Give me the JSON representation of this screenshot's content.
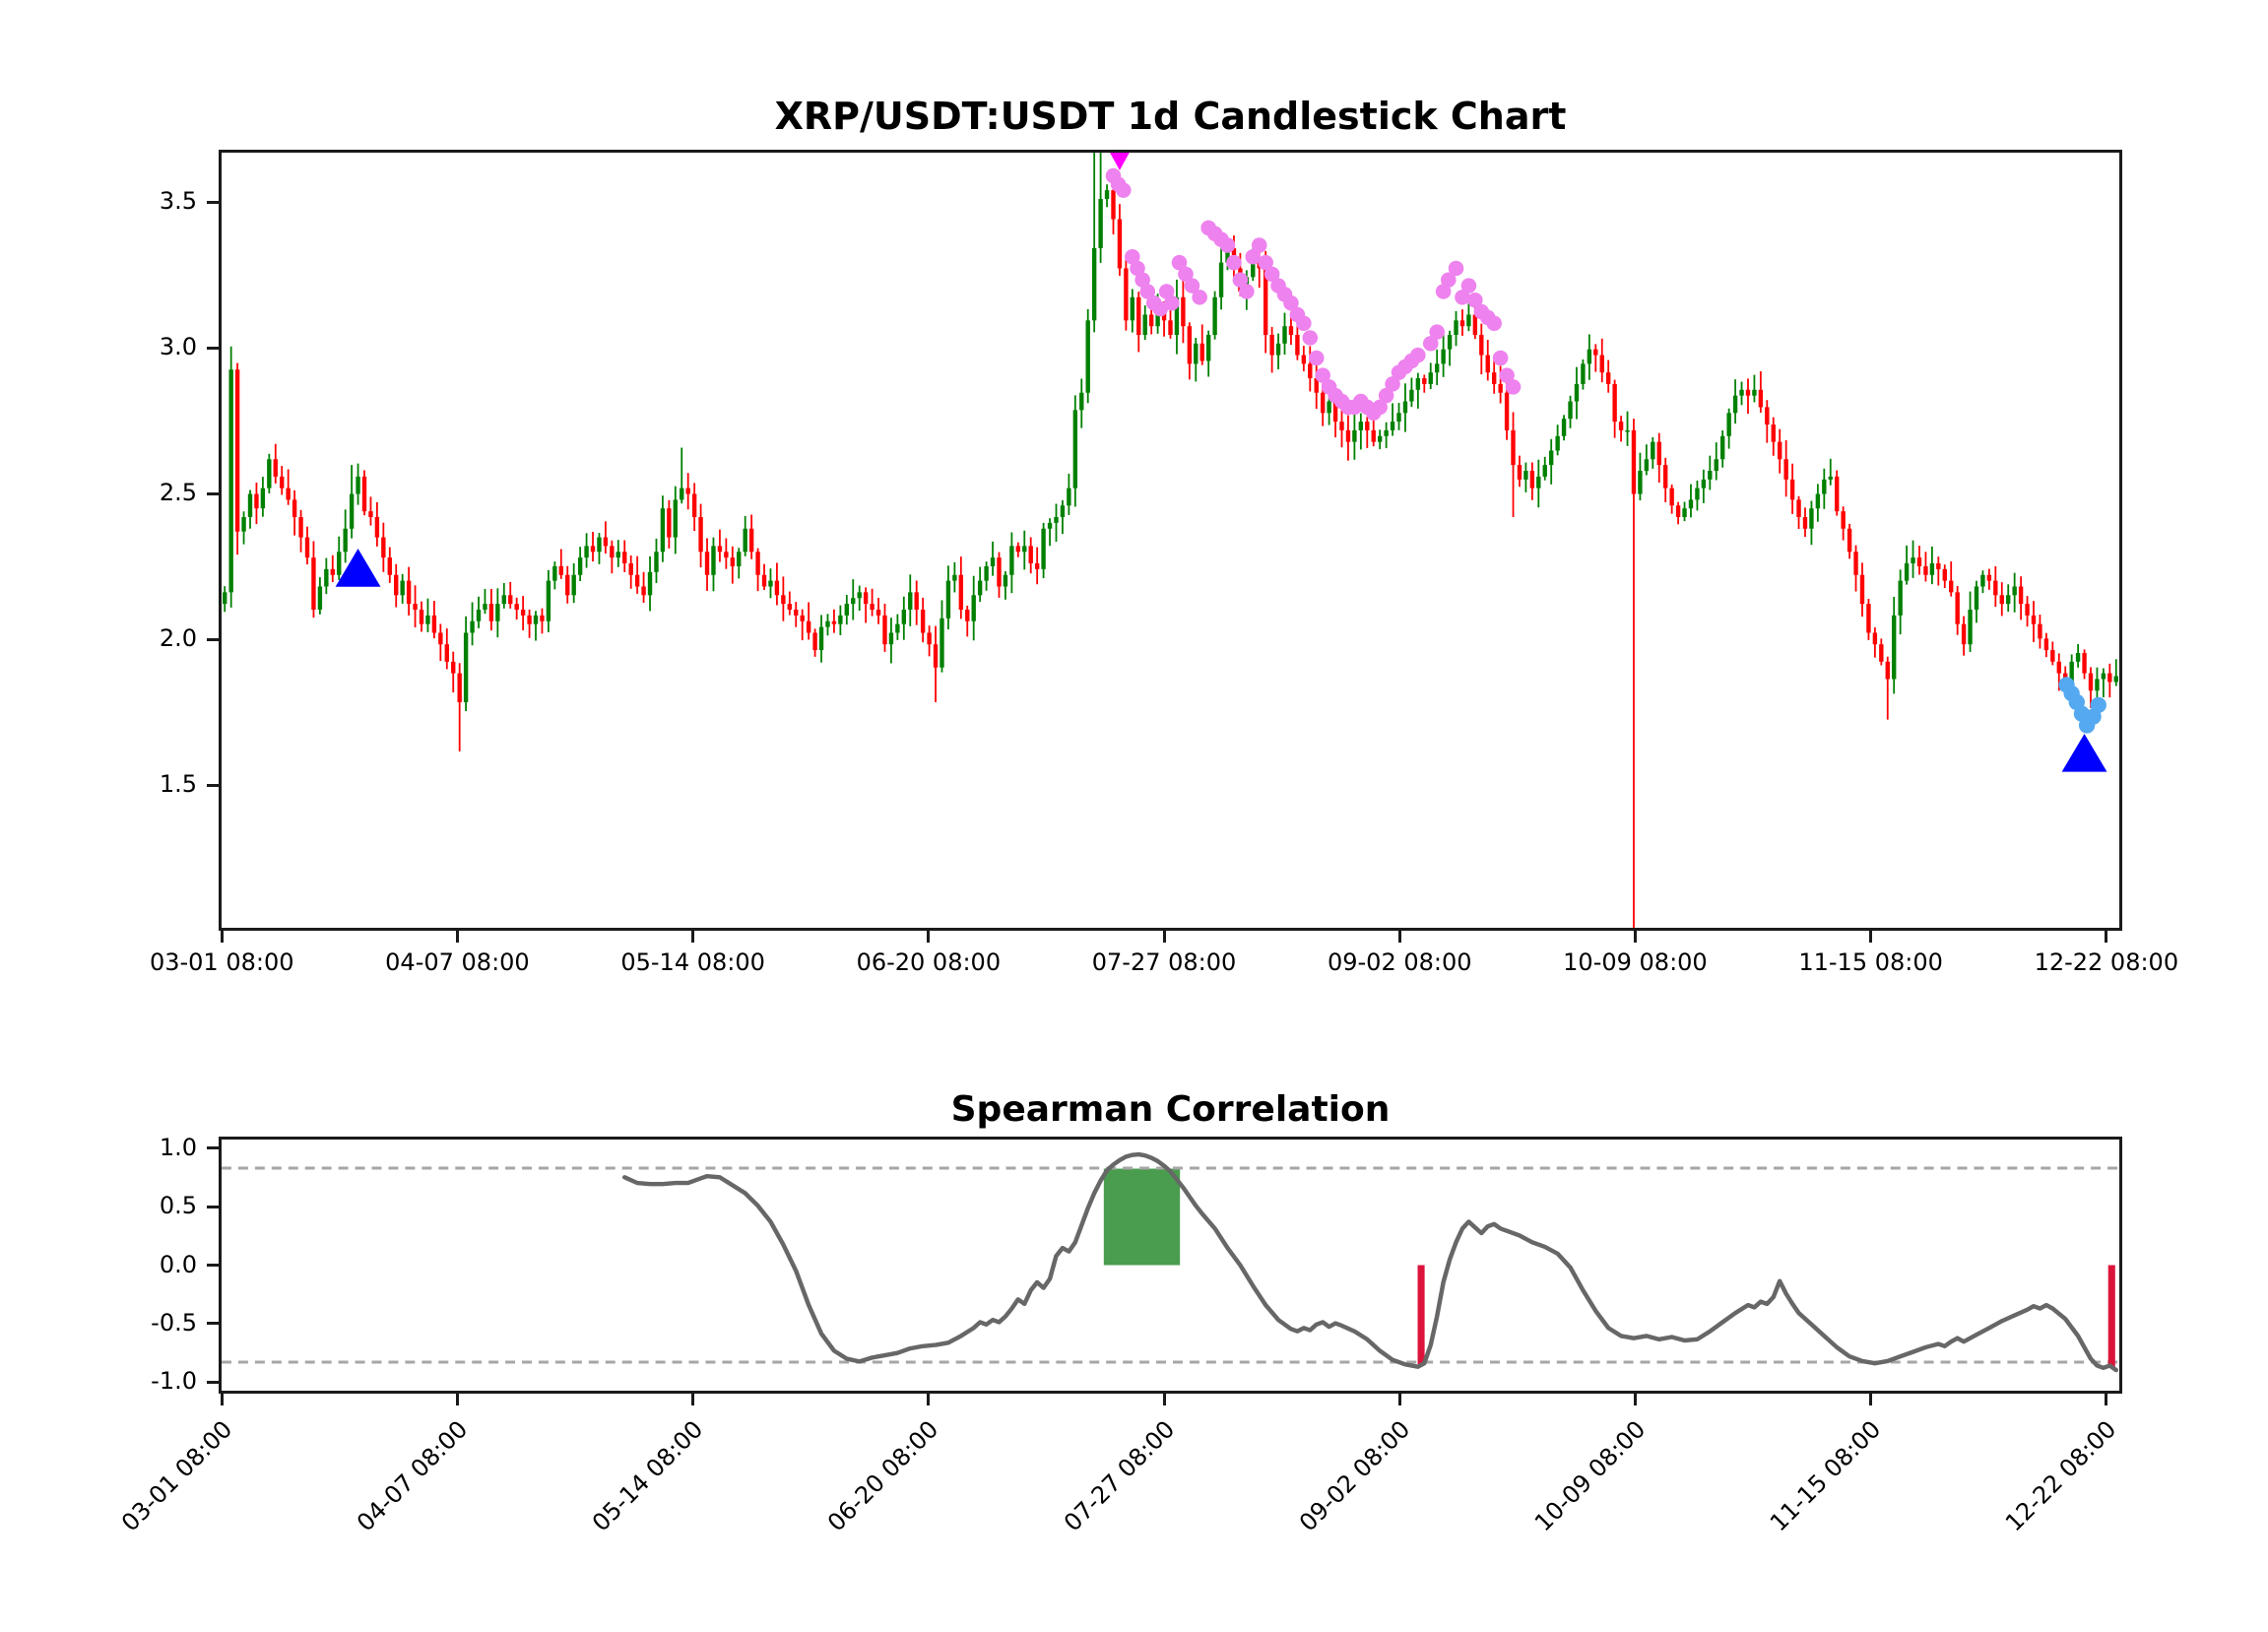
{
  "figure": {
    "background": "#ffffff"
  },
  "colors": {
    "up_candle": "#008000",
    "down_candle": "#ff0000",
    "violet_dot": "#ee82ee",
    "magenta_marker": "#ff00ff",
    "blue_triangle": "#0000ff",
    "light_blue_dot": "#55a9f0",
    "corr_line": "#676767",
    "threshold_dash": "#a6a6a6",
    "green_box": "#4a9d4e",
    "crimson_bar": "#dc143c",
    "spine": "#1a1a1a"
  },
  "main_chart": {
    "title": "XRP/USDT:USDT 1d Candlestick Chart",
    "ylim": [
      1.0,
      3.68
    ],
    "yticks": [
      3.5,
      3.0,
      2.5,
      2.0,
      1.5
    ],
    "ytick_labels": [
      "3.5",
      "3.0",
      "2.5",
      "2.0",
      "1.5"
    ],
    "xlim": [
      -0.5,
      298.5
    ],
    "xtick_days": [
      0,
      37,
      74,
      111,
      148,
      185,
      222,
      259,
      296
    ],
    "xtick_labels": [
      "03-01 08:00",
      "04-07 08:00",
      "05-14 08:00",
      "06-20 08:00",
      "07-27 08:00",
      "09-02 08:00",
      "10-09 08:00",
      "11-15 08:00",
      "12-22 08:00"
    ]
  },
  "corr_chart": {
    "title": "Spearman Correlation",
    "ylim": [
      -1.1,
      1.1
    ],
    "yticks": [
      1.0,
      0.5,
      0.0,
      -0.5,
      -1.0
    ],
    "ytick_labels": [
      "1.0",
      "0.5",
      "0.0",
      "-0.5",
      "-1.0"
    ],
    "xtick_days": [
      0,
      37,
      74,
      111,
      148,
      185,
      222,
      259,
      296
    ],
    "xtick_labels": [
      "03-01 08:00",
      "04-07 08:00",
      "05-14 08:00",
      "06-20 08:00",
      "07-27 08:00",
      "09-02 08:00",
      "10-09 08:00",
      "11-15 08:00",
      "12-22 08:00"
    ]
  },
  "chart_data": [
    {
      "type": "candlestick",
      "title": "XRP/USDT:USDT 1d Candlestick Chart",
      "x_unit": "days since 03-01 08:00 (1d candles)",
      "ylim": [
        1.0,
        3.68
      ],
      "open_day0": 2.12,
      "closes": [
        2.16,
        2.93,
        2.37,
        2.42,
        2.5,
        2.45,
        2.52,
        2.62,
        2.56,
        2.52,
        2.48,
        2.42,
        2.35,
        2.28,
        2.1,
        2.18,
        2.24,
        2.22,
        2.3,
        2.38,
        2.5,
        2.56,
        2.44,
        2.42,
        2.35,
        2.28,
        2.22,
        2.15,
        2.2,
        2.12,
        2.1,
        2.05,
        2.08,
        2.02,
        1.98,
        1.92,
        1.88,
        1.78,
        2.02,
        2.06,
        2.1,
        2.12,
        2.06,
        2.12,
        2.15,
        2.12,
        2.1,
        2.08,
        2.05,
        2.08,
        2.06,
        2.2,
        2.25,
        2.22,
        2.15,
        2.22,
        2.28,
        2.32,
        2.3,
        2.35,
        2.32,
        2.28,
        2.3,
        2.26,
        2.22,
        2.18,
        2.15,
        2.23,
        2.3,
        2.45,
        2.35,
        2.48,
        2.52,
        2.5,
        2.42,
        2.3,
        2.22,
        2.32,
        2.3,
        2.28,
        2.25,
        2.3,
        2.38,
        2.3,
        2.22,
        2.18,
        2.2,
        2.15,
        2.12,
        2.1,
        2.08,
        2.06,
        2.02,
        1.96,
        2.04,
        2.06,
        2.05,
        2.08,
        2.12,
        2.14,
        2.16,
        2.12,
        2.1,
        2.08,
        1.98,
        2.02,
        2.05,
        2.1,
        2.16,
        2.1,
        2.02,
        1.98,
        1.9,
        2.07,
        2.2,
        2.22,
        2.1,
        2.06,
        2.15,
        2.2,
        2.25,
        2.28,
        2.18,
        2.22,
        2.32,
        2.3,
        2.32,
        2.26,
        2.24,
        2.38,
        2.4,
        2.42,
        2.46,
        2.52,
        2.79,
        2.85,
        3.1,
        3.35,
        3.52,
        3.55,
        3.45,
        3.28,
        3.1,
        3.18,
        3.05,
        3.12,
        3.08,
        3.15,
        3.1,
        3.05,
        3.18,
        3.08,
        2.95,
        3.02,
        2.96,
        3.05,
        3.18,
        3.3,
        3.35,
        3.28,
        3.2,
        3.25,
        3.3,
        3.28,
        3.05,
        2.98,
        3.02,
        3.08,
        3.05,
        2.98,
        2.95,
        2.9,
        2.85,
        2.78,
        2.82,
        2.75,
        2.72,
        2.68,
        2.72,
        2.75,
        2.72,
        2.68,
        2.7,
        2.72,
        2.75,
        2.78,
        2.82,
        2.86,
        2.9,
        2.88,
        2.92,
        2.95,
        3.0,
        3.05,
        3.1,
        3.08,
        3.12,
        3.05,
        2.98,
        2.92,
        2.88,
        2.85,
        2.72,
        2.6,
        2.55,
        2.58,
        2.52,
        2.56,
        2.6,
        2.65,
        2.7,
        2.76,
        2.82,
        2.88,
        2.95,
        3.0,
        2.98,
        2.92,
        2.88,
        2.75,
        2.72,
        2.72,
        2.5,
        2.58,
        2.62,
        2.68,
        2.6,
        2.52,
        2.46,
        2.42,
        2.45,
        2.48,
        2.52,
        2.55,
        2.58,
        2.62,
        2.7,
        2.78,
        2.84,
        2.86,
        2.84,
        2.86,
        2.8,
        2.74,
        2.68,
        2.62,
        2.55,
        2.48,
        2.42,
        2.38,
        2.45,
        2.5,
        2.55,
        2.56,
        2.44,
        2.38,
        2.3,
        2.22,
        2.12,
        2.02,
        1.98,
        1.92,
        1.86,
        2.08,
        2.2,
        2.26,
        2.28,
        2.25,
        2.22,
        2.26,
        2.24,
        2.2,
        2.16,
        2.05,
        1.98,
        2.1,
        2.18,
        2.22,
        2.2,
        2.15,
        2.12,
        2.15,
        2.18,
        2.12,
        2.08,
        2.05,
        2.0,
        1.96,
        1.92,
        1.88,
        1.85,
        1.92,
        1.95,
        1.88,
        1.82,
        1.86,
        1.88,
        1.85,
        1.87
      ],
      "wick_overrides": {
        "1": {
          "h": 3.01
        },
        "2": {
          "l": 2.29
        },
        "20": {
          "h": 2.6
        },
        "37": {
          "l": 1.61
        },
        "72": {
          "h": 2.66
        },
        "112": {
          "l": 1.78
        },
        "137": {
          "h": 3.72
        },
        "138": {
          "h": 3.68
        },
        "203": {
          "l": 2.42
        },
        "222": {
          "o": 2.72,
          "h": 2.76,
          "l": 0.9
        },
        "262": {
          "l": 1.72
        }
      },
      "markers": {
        "blue_triangles_up": [
          [
            21,
            2.24
          ],
          [
            293,
            1.6
          ]
        ],
        "magenta_triangle_down": [
          [
            141,
            3.67
          ]
        ],
        "violet_dots": [
          [
            140,
            3.6
          ],
          [
            140.8,
            3.57
          ],
          [
            141.6,
            3.55
          ],
          [
            143,
            3.32
          ],
          [
            143.8,
            3.28
          ],
          [
            144.6,
            3.24
          ],
          [
            145.4,
            3.2
          ],
          [
            146.4,
            3.16
          ],
          [
            147.4,
            3.14
          ],
          [
            148.4,
            3.2
          ],
          [
            149.2,
            3.16
          ],
          [
            150.4,
            3.3
          ],
          [
            151.4,
            3.26
          ],
          [
            152.4,
            3.22
          ],
          [
            153.6,
            3.18
          ],
          [
            155,
            3.42
          ],
          [
            156,
            3.4
          ],
          [
            157,
            3.38
          ],
          [
            158,
            3.36
          ],
          [
            159,
            3.3
          ],
          [
            160,
            3.24
          ],
          [
            161,
            3.2
          ],
          [
            162,
            3.32
          ],
          [
            163,
            3.36
          ],
          [
            164,
            3.3
          ],
          [
            165,
            3.26
          ],
          [
            166,
            3.22
          ],
          [
            167,
            3.19
          ],
          [
            168,
            3.16
          ],
          [
            169,
            3.12
          ],
          [
            170,
            3.09
          ],
          [
            171,
            3.04
          ],
          [
            172,
            2.97
          ],
          [
            173,
            2.91
          ],
          [
            174,
            2.87
          ],
          [
            175,
            2.84
          ],
          [
            176,
            2.82
          ],
          [
            177,
            2.8
          ],
          [
            178,
            2.8
          ],
          [
            179,
            2.82
          ],
          [
            180,
            2.8
          ],
          [
            181,
            2.78
          ],
          [
            182,
            2.8
          ],
          [
            183,
            2.84
          ],
          [
            184,
            2.88
          ],
          [
            185,
            2.92
          ],
          [
            186,
            2.94
          ],
          [
            187,
            2.96
          ],
          [
            188,
            2.98
          ],
          [
            190,
            3.02
          ],
          [
            191,
            3.06
          ],
          [
            192,
            3.2
          ],
          [
            192.8,
            3.24
          ],
          [
            194,
            3.28
          ],
          [
            195,
            3.18
          ],
          [
            196,
            3.22
          ],
          [
            197,
            3.17
          ],
          [
            198,
            3.13
          ],
          [
            199,
            3.11
          ],
          [
            200,
            3.09
          ],
          [
            201,
            2.97
          ],
          [
            202,
            2.91
          ],
          [
            203,
            2.87
          ]
        ],
        "light_blue_dots": [
          [
            290.2,
            1.84
          ],
          [
            291,
            1.81
          ],
          [
            291.8,
            1.78
          ],
          [
            292.6,
            1.74
          ],
          [
            293.4,
            1.7
          ],
          [
            294.4,
            1.73
          ],
          [
            295.2,
            1.77
          ]
        ]
      }
    },
    {
      "type": "line",
      "title": "Spearman Correlation",
      "x_unit": "days since 03-01 08:00",
      "ylim": [
        -1.1,
        1.1
      ],
      "thresholds": [
        0.85,
        -0.85
      ],
      "points": [
        [
          63,
          0.77
        ],
        [
          65,
          0.72
        ],
        [
          67,
          0.71
        ],
        [
          69,
          0.71
        ],
        [
          71,
          0.72
        ],
        [
          73,
          0.72
        ],
        [
          75,
          0.76
        ],
        [
          76,
          0.78
        ],
        [
          78,
          0.77
        ],
        [
          80,
          0.7
        ],
        [
          82,
          0.63
        ],
        [
          84,
          0.52
        ],
        [
          86,
          0.38
        ],
        [
          88,
          0.18
        ],
        [
          90,
          -0.05
        ],
        [
          92,
          -0.35
        ],
        [
          94,
          -0.6
        ],
        [
          96,
          -0.75
        ],
        [
          98,
          -0.82
        ],
        [
          100,
          -0.845
        ],
        [
          102,
          -0.81
        ],
        [
          104,
          -0.79
        ],
        [
          106,
          -0.77
        ],
        [
          108,
          -0.73
        ],
        [
          110,
          -0.71
        ],
        [
          112,
          -0.7
        ],
        [
          114,
          -0.68
        ],
        [
          116,
          -0.62
        ],
        [
          118,
          -0.55
        ],
        [
          119,
          -0.5
        ],
        [
          120,
          -0.52
        ],
        [
          121,
          -0.48
        ],
        [
          122,
          -0.5
        ],
        [
          123,
          -0.45
        ],
        [
          124,
          -0.38
        ],
        [
          125,
          -0.3
        ],
        [
          126,
          -0.34
        ],
        [
          127,
          -0.22
        ],
        [
          128,
          -0.15
        ],
        [
          129,
          -0.2
        ],
        [
          130,
          -0.12
        ],
        [
          131,
          0.08
        ],
        [
          132,
          0.15
        ],
        [
          133,
          0.12
        ],
        [
          134,
          0.2
        ],
        [
          135,
          0.35
        ],
        [
          136,
          0.5
        ],
        [
          137,
          0.63
        ],
        [
          138,
          0.74
        ],
        [
          139,
          0.83
        ],
        [
          140,
          0.88
        ],
        [
          141,
          0.92
        ],
        [
          142,
          0.95
        ],
        [
          143,
          0.965
        ],
        [
          144,
          0.97
        ],
        [
          145,
          0.96
        ],
        [
          146,
          0.94
        ],
        [
          147,
          0.91
        ],
        [
          148,
          0.87
        ],
        [
          149,
          0.82
        ],
        [
          150,
          0.75
        ],
        [
          151,
          0.68
        ],
        [
          152,
          0.6
        ],
        [
          153,
          0.52
        ],
        [
          154,
          0.45
        ],
        [
          156,
          0.32
        ],
        [
          158,
          0.15
        ],
        [
          160,
          0.0
        ],
        [
          162,
          -0.18
        ],
        [
          164,
          -0.35
        ],
        [
          166,
          -0.48
        ],
        [
          168,
          -0.56
        ],
        [
          169,
          -0.58
        ],
        [
          170,
          -0.55
        ],
        [
          171,
          -0.57
        ],
        [
          172,
          -0.52
        ],
        [
          173,
          -0.5
        ],
        [
          174,
          -0.54
        ],
        [
          175,
          -0.51
        ],
        [
          176,
          -0.53
        ],
        [
          178,
          -0.58
        ],
        [
          180,
          -0.65
        ],
        [
          182,
          -0.75
        ],
        [
          184,
          -0.83
        ],
        [
          186,
          -0.87
        ],
        [
          188,
          -0.89
        ],
        [
          189,
          -0.86
        ],
        [
          190,
          -0.7
        ],
        [
          191,
          -0.45
        ],
        [
          192,
          -0.15
        ],
        [
          193,
          0.05
        ],
        [
          194,
          0.2
        ],
        [
          195,
          0.32
        ],
        [
          196,
          0.38
        ],
        [
          197,
          0.33
        ],
        [
          198,
          0.28
        ],
        [
          199,
          0.34
        ],
        [
          200,
          0.36
        ],
        [
          201,
          0.32
        ],
        [
          202,
          0.3
        ],
        [
          204,
          0.26
        ],
        [
          206,
          0.2
        ],
        [
          208,
          0.16
        ],
        [
          210,
          0.1
        ],
        [
          212,
          -0.02
        ],
        [
          214,
          -0.22
        ],
        [
          216,
          -0.4
        ],
        [
          218,
          -0.55
        ],
        [
          220,
          -0.62
        ],
        [
          222,
          -0.64
        ],
        [
          224,
          -0.62
        ],
        [
          226,
          -0.65
        ],
        [
          228,
          -0.63
        ],
        [
          230,
          -0.66
        ],
        [
          232,
          -0.65
        ],
        [
          234,
          -0.58
        ],
        [
          236,
          -0.5
        ],
        [
          238,
          -0.42
        ],
        [
          240,
          -0.35
        ],
        [
          241,
          -0.37
        ],
        [
          242,
          -0.32
        ],
        [
          243,
          -0.34
        ],
        [
          244,
          -0.28
        ],
        [
          245,
          -0.14
        ],
        [
          246,
          -0.25
        ],
        [
          247,
          -0.34
        ],
        [
          248,
          -0.42
        ],
        [
          250,
          -0.52
        ],
        [
          252,
          -0.62
        ],
        [
          254,
          -0.72
        ],
        [
          256,
          -0.8
        ],
        [
          258,
          -0.84
        ],
        [
          260,
          -0.86
        ],
        [
          262,
          -0.84
        ],
        [
          264,
          -0.8
        ],
        [
          266,
          -0.76
        ],
        [
          268,
          -0.72
        ],
        [
          270,
          -0.69
        ],
        [
          271,
          -0.71
        ],
        [
          272,
          -0.67
        ],
        [
          273,
          -0.64
        ],
        [
          274,
          -0.67
        ],
        [
          276,
          -0.61
        ],
        [
          278,
          -0.55
        ],
        [
          280,
          -0.49
        ],
        [
          282,
          -0.44
        ],
        [
          284,
          -0.39
        ],
        [
          285,
          -0.36
        ],
        [
          286,
          -0.38
        ],
        [
          287,
          -0.35
        ],
        [
          288,
          -0.38
        ],
        [
          290,
          -0.47
        ],
        [
          292,
          -0.62
        ],
        [
          293,
          -0.72
        ],
        [
          294,
          -0.82
        ],
        [
          295,
          -0.88
        ],
        [
          296,
          -0.9
        ],
        [
          297,
          -0.88
        ],
        [
          298,
          -0.92
        ]
      ],
      "green_box": {
        "day0": 138.5,
        "day1": 150.5,
        "v0": 0.0,
        "v1": 0.845
      },
      "crimson_bars": [
        {
          "day": 188.5,
          "v": -0.88
        },
        {
          "day": 297.3,
          "v": -0.9
        }
      ],
      "bar_width_days": 1.1
    }
  ]
}
